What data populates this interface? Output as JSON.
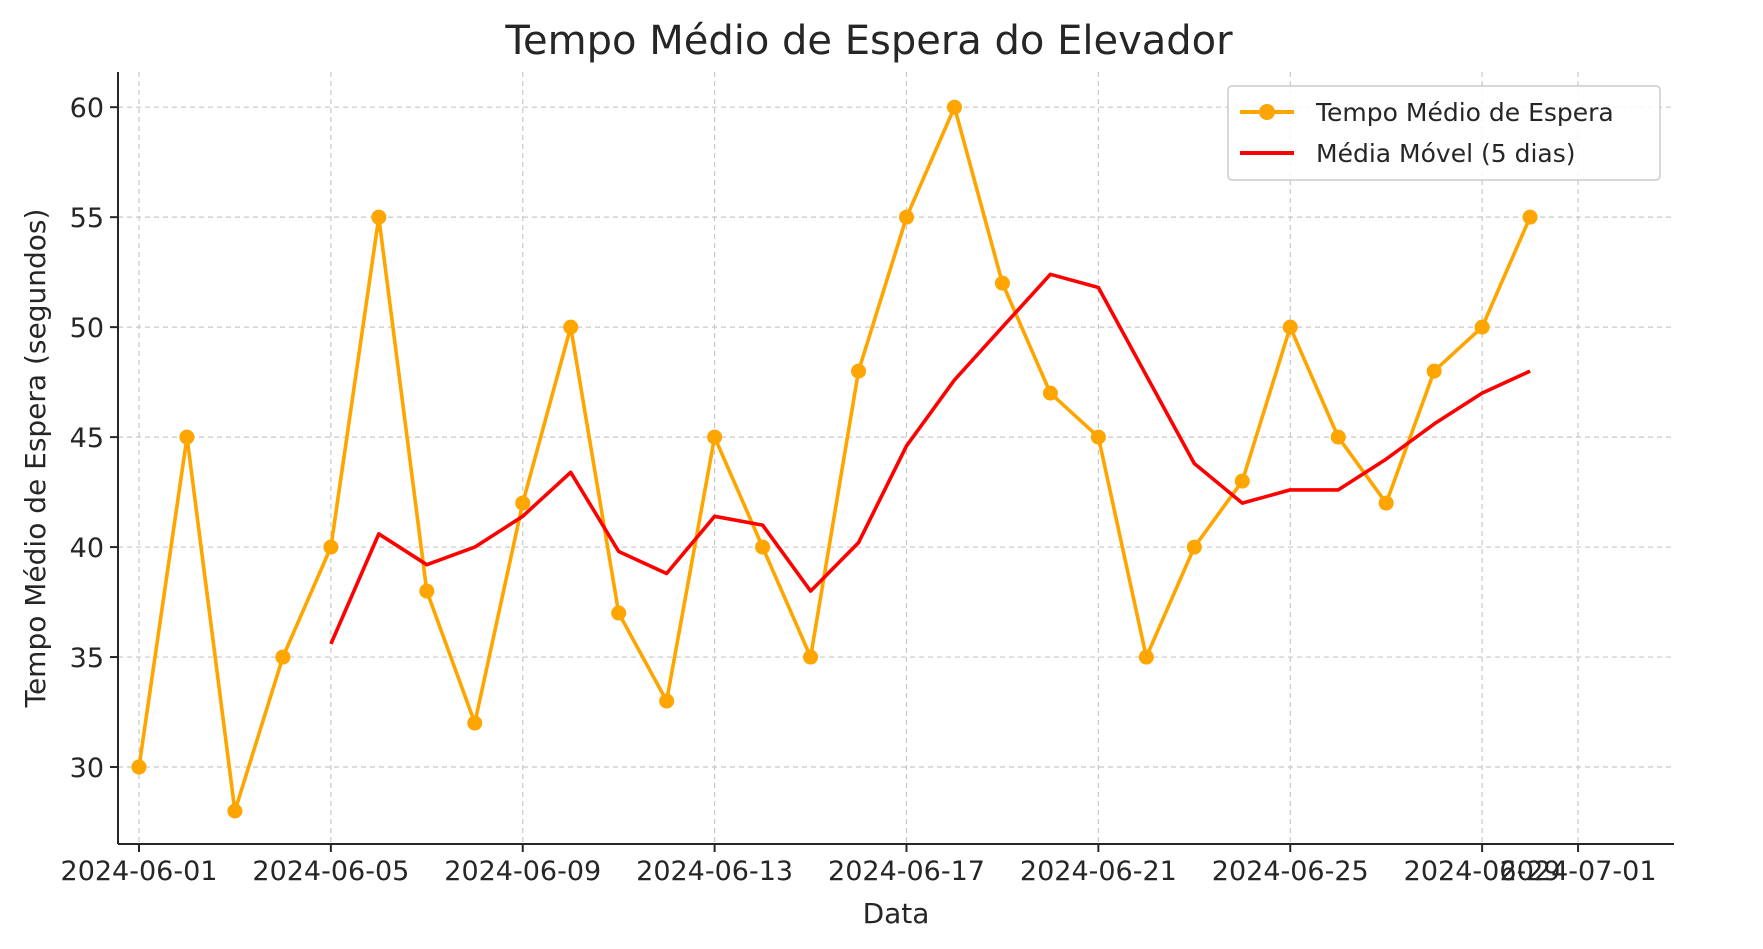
{
  "chart_data": {
    "type": "line",
    "title": "Tempo Médio de Espera do Elevador",
    "xlabel": "Data",
    "ylabel": "Tempo Médio de Espera (segundos)",
    "x": [
      "2024-06-01",
      "2024-06-02",
      "2024-06-03",
      "2024-06-04",
      "2024-06-05",
      "2024-06-06",
      "2024-06-07",
      "2024-06-08",
      "2024-06-09",
      "2024-06-10",
      "2024-06-11",
      "2024-06-12",
      "2024-06-13",
      "2024-06-14",
      "2024-06-15",
      "2024-06-16",
      "2024-06-17",
      "2024-06-18",
      "2024-06-19",
      "2024-06-20",
      "2024-06-21",
      "2024-06-22",
      "2024-06-23",
      "2024-06-24",
      "2024-06-25",
      "2024-06-26",
      "2024-06-27",
      "2024-06-28",
      "2024-06-29",
      "2024-06-30"
    ],
    "x_ticks": [
      "2024-06-01",
      "2024-06-05",
      "2024-06-09",
      "2024-06-13",
      "2024-06-17",
      "2024-06-21",
      "2024-06-25",
      "2024-06-29",
      "2024-07-01"
    ],
    "xlim": [
      "2024-05-31T13:30",
      "2024-07-03"
    ],
    "ylim": [
      26.5,
      61.6
    ],
    "y_ticks": [
      30,
      35,
      40,
      45,
      50,
      55,
      60
    ],
    "grid": true,
    "legend_position": "top-right",
    "series": [
      {
        "name": "Tempo Médio de Espera",
        "color": "#FFA500",
        "marker": "circle",
        "values": [
          30,
          45,
          28,
          35,
          40,
          55,
          38,
          32,
          42,
          50,
          37,
          33,
          45,
          40,
          35,
          48,
          55,
          60,
          52,
          47,
          45,
          35,
          40,
          43,
          50,
          45,
          42,
          48,
          50,
          55
        ]
      },
      {
        "name": "Média Móvel (5 dias)",
        "color": "#FF0000",
        "marker": "none",
        "values": [
          null,
          null,
          null,
          null,
          35.6,
          40.6,
          39.2,
          40.0,
          41.4,
          43.4,
          39.8,
          38.8,
          41.4,
          41.0,
          38.0,
          40.2,
          44.6,
          47.6,
          50.0,
          52.4,
          51.8,
          47.8,
          43.8,
          42.0,
          42.6,
          42.6,
          44.0,
          45.6,
          47.0,
          48.0
        ]
      }
    ]
  }
}
